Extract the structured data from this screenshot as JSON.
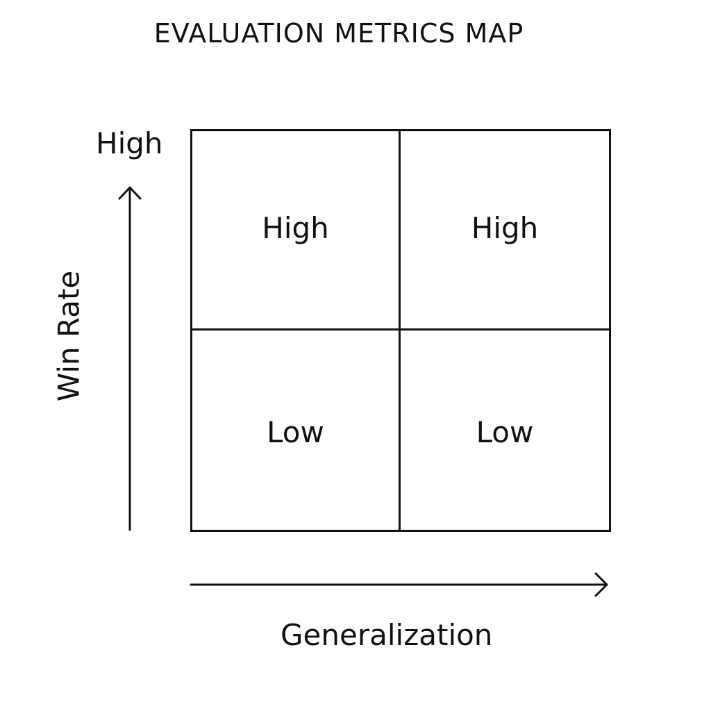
{
  "title": "EVALUATION METRICS MAP",
  "axes": {
    "y_label": "Win Rate",
    "y_high_label": "High",
    "x_label": "Generalization"
  },
  "quadrants": [
    {
      "label": "High"
    },
    {
      "label": "High"
    },
    {
      "label": "Low"
    },
    {
      "label": "Low"
    }
  ],
  "colors": {
    "line": "#111111",
    "background": "#ffffff"
  }
}
